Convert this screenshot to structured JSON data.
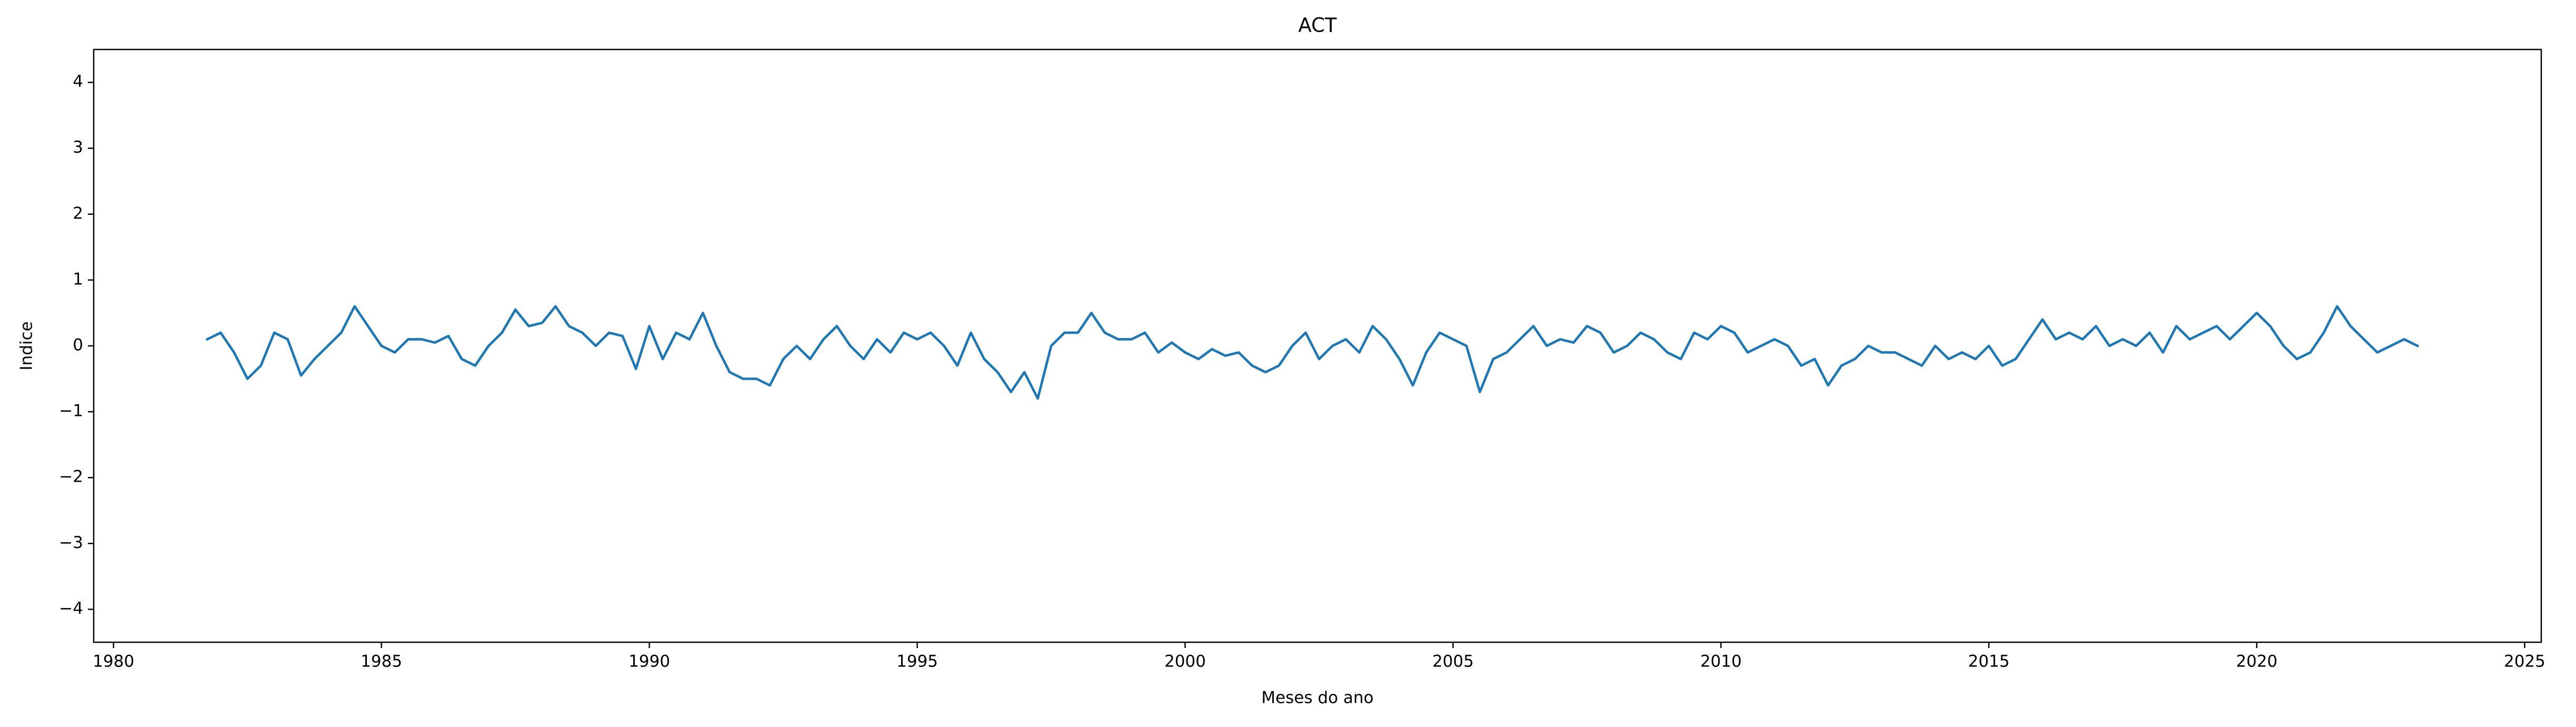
{
  "chart_data": {
    "type": "line",
    "title": "ACT",
    "xlabel": "Meses do ano",
    "ylabel": "Indice",
    "color": "#1f77b4",
    "grid": false,
    "xlim": [
      1979.63,
      2025.31
    ],
    "ylim": [
      -4.5,
      4.5
    ],
    "xticks": [
      1980,
      1985,
      1990,
      1995,
      2000,
      2005,
      2010,
      2015,
      2020,
      2025
    ],
    "yticks": [
      {
        "value": -4,
        "label": "−4"
      },
      {
        "value": -3,
        "label": "−3"
      },
      {
        "value": -2,
        "label": "−2"
      },
      {
        "value": -1,
        "label": "−1"
      },
      0,
      1,
      2,
      3,
      4
    ],
    "x": [
      1981.75,
      1982,
      1982.25,
      1982.5,
      1982.75,
      1983,
      1983.25,
      1983.5,
      1983.75,
      1984,
      1984.25,
      1984.5,
      1984.75,
      1985,
      1985.25,
      1985.5,
      1985.75,
      1986,
      1986.25,
      1986.5,
      1986.75,
      1987,
      1987.25,
      1987.5,
      1987.75,
      1988,
      1988.25,
      1988.5,
      1988.75,
      1989,
      1989.25,
      1989.5,
      1989.75,
      1990,
      1990.25,
      1990.5,
      1990.75,
      1991,
      1991.25,
      1991.5,
      1991.75,
      1992,
      1992.25,
      1992.5,
      1992.75,
      1993,
      1993.25,
      1993.5,
      1993.75,
      1994,
      1994.25,
      1994.5,
      1994.75,
      1995,
      1995.25,
      1995.5,
      1995.75,
      1996,
      1996.25,
      1996.5,
      1996.75,
      1997,
      1997.25,
      1997.5,
      1997.75,
      1998,
      1998.25,
      1998.5,
      1998.75,
      1999,
      1999.25,
      1999.5,
      1999.75,
      2000,
      2000.25,
      2000.5,
      2000.75,
      2001,
      2001.25,
      2001.5,
      2001.75,
      2002,
      2002.25,
      2002.5,
      2002.75,
      2003,
      2003.25,
      2003.5,
      2003.75,
      2004,
      2004.25,
      2004.5,
      2004.75,
      2005,
      2005.25,
      2005.5,
      2005.75,
      2006,
      2006.25,
      2006.5,
      2006.75,
      2007,
      2007.25,
      2007.5,
      2007.75,
      2008,
      2008.25,
      2008.5,
      2008.75,
      2009,
      2009.25,
      2009.5,
      2009.75,
      2010,
      2010.25,
      2010.5,
      2010.75,
      2011,
      2011.25,
      2011.5,
      2011.75,
      2012,
      2012.25,
      2012.5,
      2012.75,
      2013,
      2013.25,
      2013.5,
      2013.75,
      2014,
      2014.25,
      2014.5,
      2014.75,
      2015,
      2015.25,
      2015.5,
      2015.75,
      2016,
      2016.25,
      2016.5,
      2016.75,
      2017,
      2017.25,
      2017.5,
      2017.75,
      2018,
      2018.25,
      2018.5,
      2018.75,
      2019,
      2019.25,
      2019.5,
      2019.75,
      2020,
      2020.25,
      2020.5,
      2020.75,
      2021,
      2021.25,
      2021.5,
      2021.75,
      2022,
      2022.25,
      2022.5,
      2022.75,
      2023
    ],
    "values": [
      0.1,
      0.2,
      -0.1,
      -0.5,
      -0.3,
      0.2,
      0.1,
      -0.45,
      -0.2,
      0.0,
      0.2,
      0.6,
      0.3,
      0.0,
      -0.1,
      0.1,
      0.1,
      0.05,
      0.15,
      -0.2,
      -0.3,
      0.0,
      0.2,
      0.55,
      0.3,
      0.35,
      0.6,
      0.3,
      0.2,
      0.0,
      0.2,
      0.15,
      -0.35,
      0.3,
      -0.2,
      0.2,
      0.1,
      0.5,
      0.0,
      -0.4,
      -0.5,
      -0.5,
      -0.6,
      -0.2,
      0.0,
      -0.2,
      0.1,
      0.3,
      0.0,
      -0.2,
      0.1,
      -0.1,
      0.2,
      0.1,
      0.2,
      0.0,
      -0.3,
      0.2,
      -0.2,
      -0.4,
      -0.7,
      -0.4,
      -0.8,
      0.0,
      0.2,
      0.2,
      0.5,
      0.2,
      0.1,
      0.1,
      0.2,
      -0.1,
      0.05,
      -0.1,
      -0.2,
      -0.05,
      -0.15,
      -0.1,
      -0.3,
      -0.4,
      -0.3,
      0.0,
      0.2,
      -0.2,
      0.0,
      0.1,
      -0.1,
      0.3,
      0.1,
      -0.2,
      -0.6,
      -0.1,
      0.2,
      0.1,
      0.0,
      -0.7,
      -0.2,
      -0.1,
      0.1,
      0.3,
      0.0,
      0.1,
      0.05,
      0.3,
      0.2,
      -0.1,
      0.0,
      0.2,
      0.1,
      -0.1,
      -0.2,
      0.2,
      0.1,
      0.3,
      0.2,
      -0.1,
      0.0,
      0.1,
      0.0,
      -0.3,
      -0.2,
      -0.6,
      -0.3,
      -0.2,
      0.0,
      -0.1,
      -0.1,
      -0.2,
      -0.3,
      0.0,
      -0.2,
      -0.1,
      -0.2,
      0.0,
      -0.3,
      -0.2,
      0.1,
      0.4,
      0.1,
      0.2,
      0.1,
      0.3,
      0.0,
      0.1,
      0.0,
      0.2,
      -0.1,
      0.3,
      0.1,
      0.2,
      0.3,
      0.1,
      0.3,
      0.5,
      0.3,
      0.0,
      -0.2,
      -0.1,
      0.2,
      0.6,
      0.3,
      0.1,
      -0.1,
      0.0,
      0.1,
      0.0
    ]
  }
}
